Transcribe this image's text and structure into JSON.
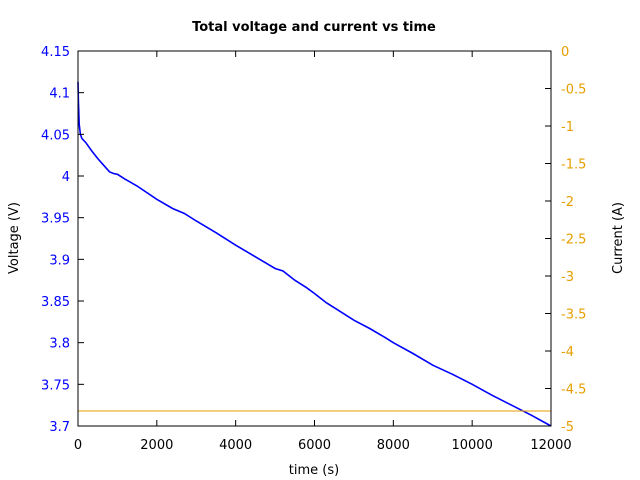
{
  "chart_data": {
    "type": "line",
    "title": "Total voltage and current vs time",
    "xlabel": "time (s)",
    "ylabel": "Voltage (V)",
    "y2label": "Current (A)",
    "xlim": [
      0,
      12000
    ],
    "ylim": [
      3.7,
      4.15
    ],
    "y2lim": [
      -5,
      0
    ],
    "x_ticks": [
      "0",
      "2000",
      "4000",
      "6000",
      "8000",
      "10000",
      "12000"
    ],
    "y_ticks": [
      "3.7",
      "3.75",
      "3.8",
      "3.85",
      "3.9",
      "3.95",
      "4",
      "4.05",
      "4.1",
      "4.15"
    ],
    "y2_ticks": [
      "-5",
      "-4.5",
      "-4",
      "-3.5",
      "-3",
      "-2.5",
      "-2",
      "-1.5",
      "-1",
      "-0.5",
      "0"
    ],
    "grid": false,
    "legend": null,
    "series": [
      {
        "name": "Voltage",
        "axis": "left",
        "color": "#0000ff",
        "x": [
          0,
          10,
          30,
          60,
          100,
          200,
          350,
          500,
          650,
          800,
          900,
          1000,
          1200,
          1500,
          2000,
          2400,
          2700,
          3000,
          3500,
          4000,
          4500,
          5000,
          5200,
          5500,
          5800,
          6000,
          6300,
          6700,
          7000,
          7400,
          7800,
          8000,
          8500,
          9000,
          9500,
          10000,
          10500,
          11000,
          11500,
          12000
        ],
        "values": [
          4.113,
          4.09,
          4.062,
          4.05,
          4.045,
          4.04,
          4.03,
          4.021,
          4.013,
          4.005,
          4.003,
          4.002,
          3.996,
          3.988,
          3.972,
          3.961,
          3.955,
          3.946,
          3.932,
          3.917,
          3.903,
          3.889,
          3.886,
          3.875,
          3.866,
          3.859,
          3.848,
          3.836,
          3.827,
          3.817,
          3.806,
          3.8,
          3.787,
          3.773,
          3.762,
          3.75,
          3.737,
          3.725,
          3.713,
          3.7
        ]
      },
      {
        "name": "Current",
        "axis": "right",
        "color": "#e69f00",
        "x": [
          0,
          12000
        ],
        "values": [
          -4.8,
          -4.8
        ]
      }
    ]
  }
}
